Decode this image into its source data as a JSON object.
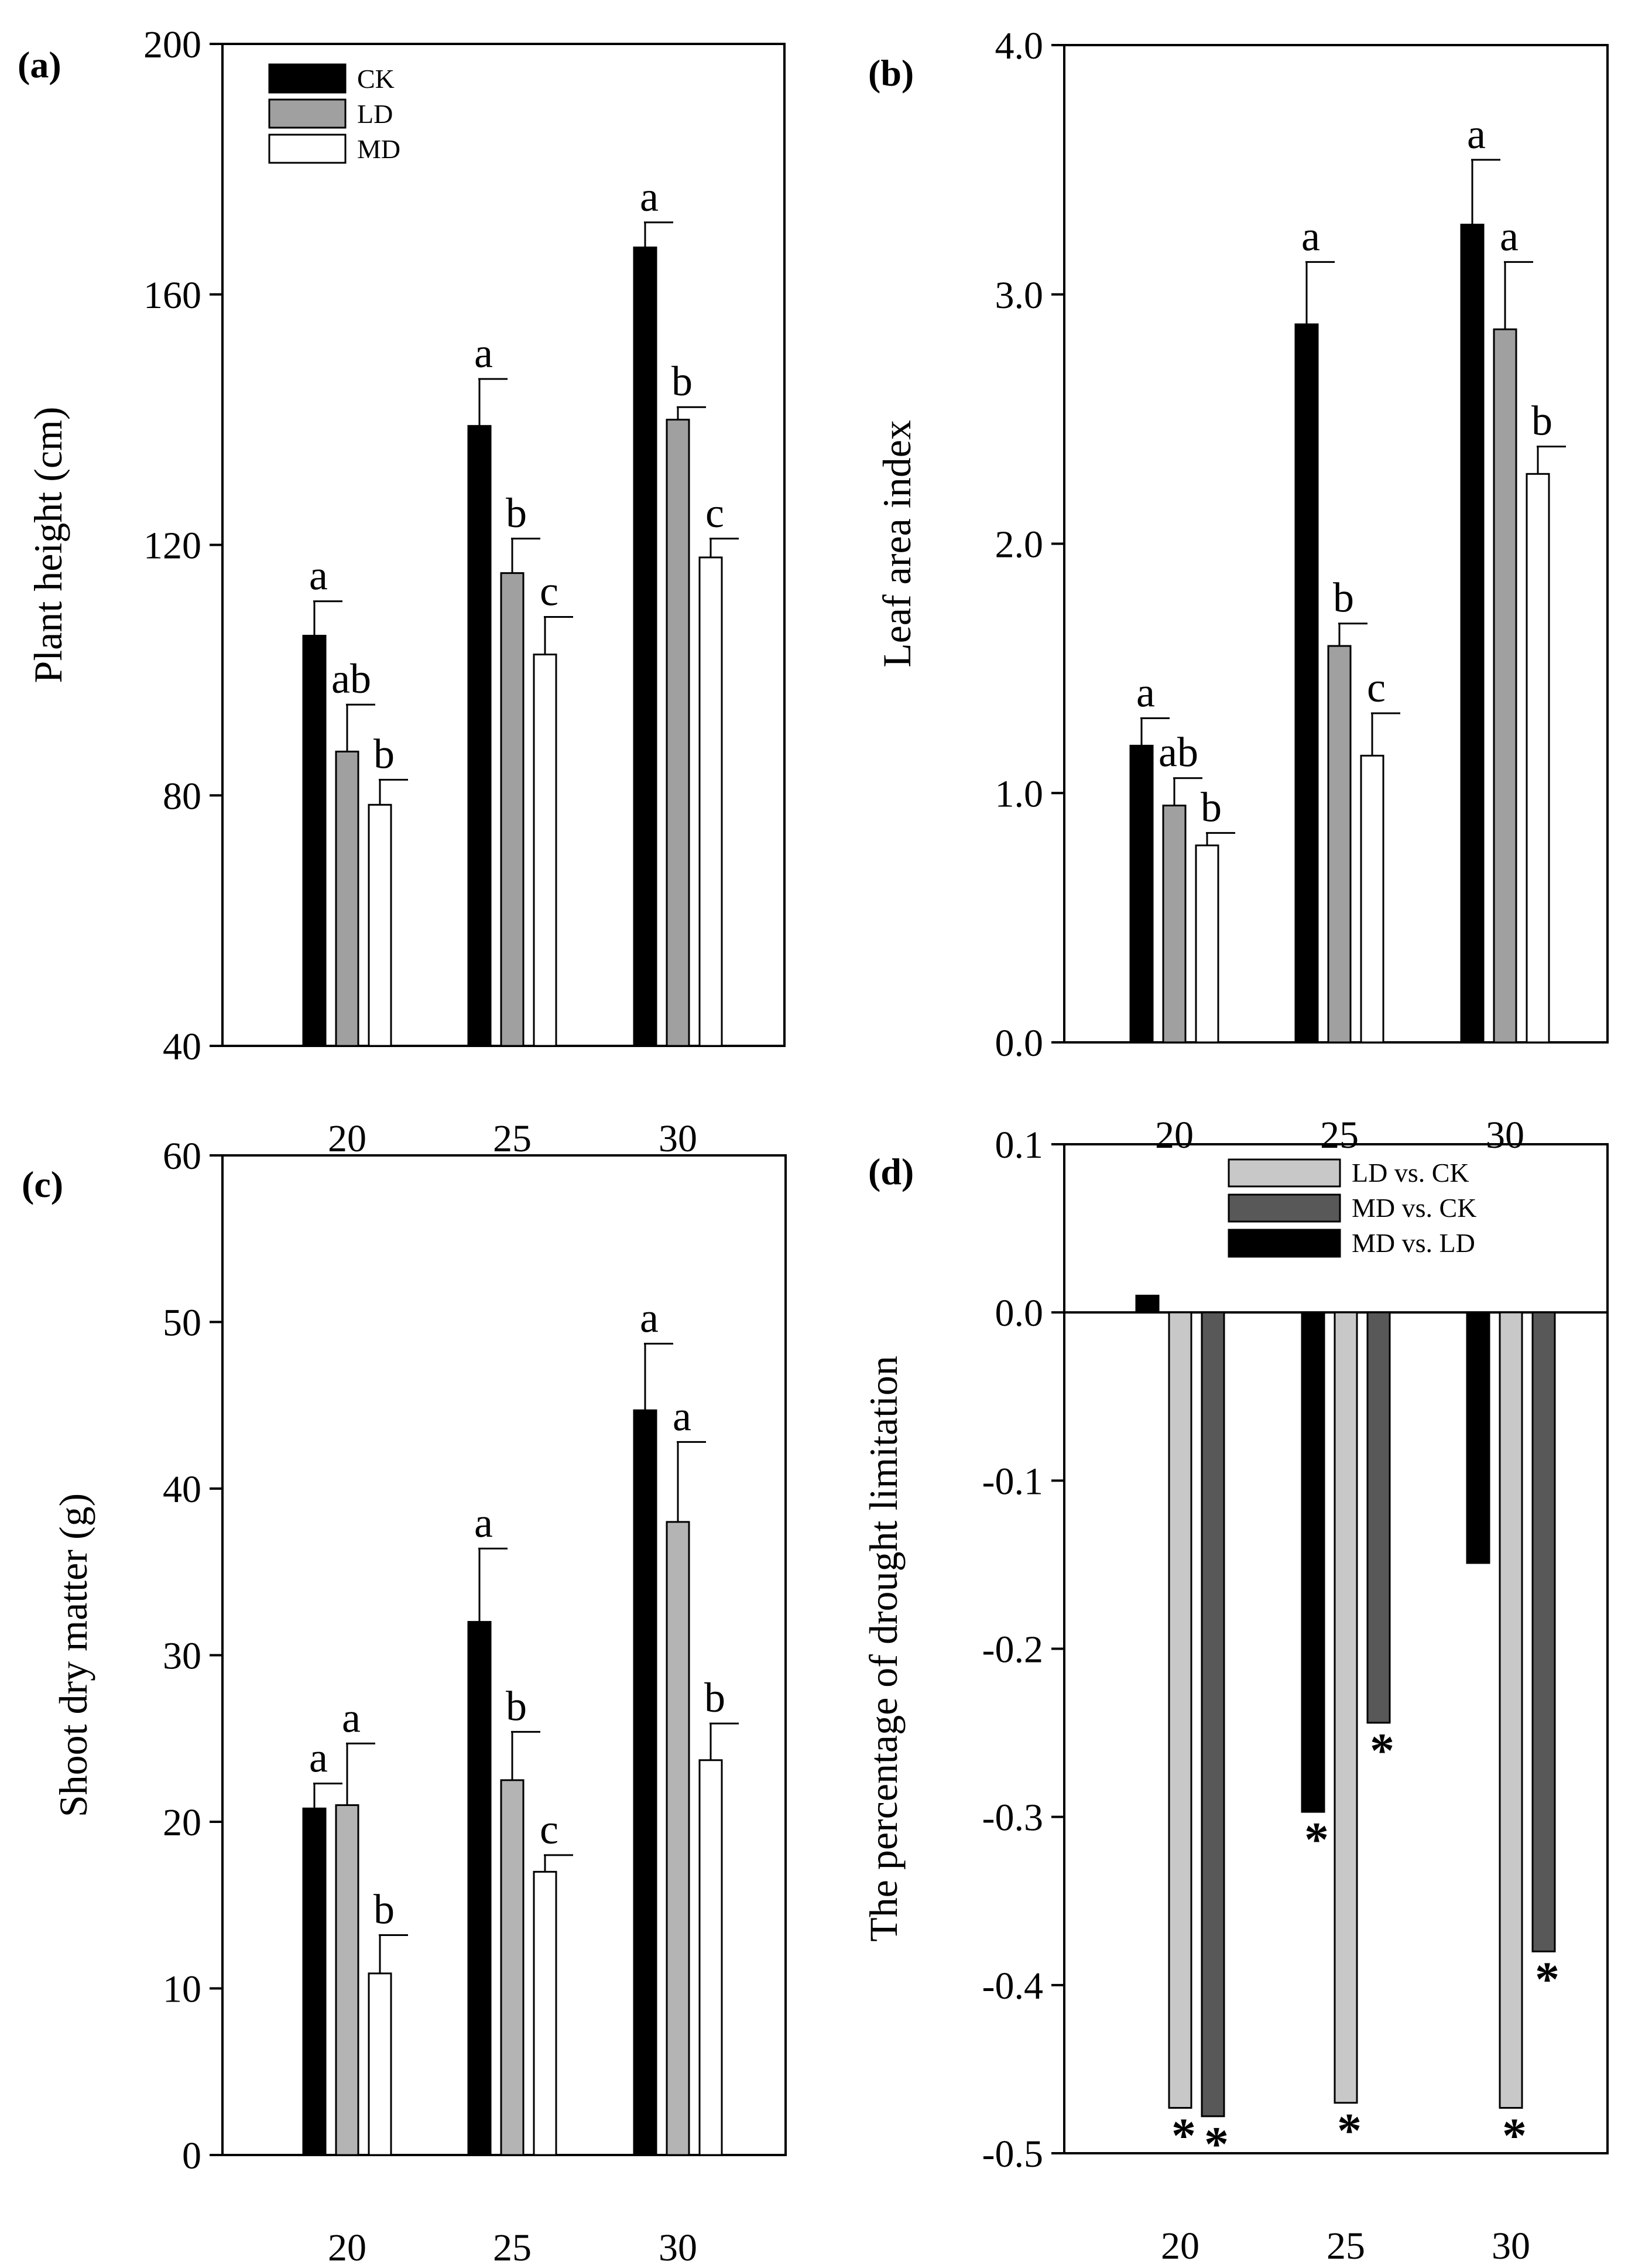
{
  "chart_data": [
    {
      "id": "a",
      "type": "bar",
      "panel_label": "(a)",
      "ylabel": "Plant height (cm)",
      "xlabel": "",
      "categories": [
        "20",
        "25",
        "30"
      ],
      "ylim": [
        40,
        200
      ],
      "yticks": [
        "40",
        "80",
        "120",
        "160",
        "200"
      ],
      "series": [
        {
          "name": "CK",
          "color": "#000000",
          "values": [
            105.5,
            139,
            167.5
          ],
          "errors": [
            5.5,
            7.5,
            4
          ],
          "letters": [
            "a",
            "a",
            "a"
          ]
        },
        {
          "name": "LD",
          "color": "#a0a0a0",
          "values": [
            87,
            115.5,
            140
          ],
          "errors": [
            7.5,
            5.5,
            2
          ],
          "letters": [
            "ab",
            "b",
            "b"
          ]
        },
        {
          "name": "MD",
          "color": "#ffffff",
          "values": [
            78.5,
            102.5,
            118
          ],
          "errors": [
            4,
            6,
            3
          ],
          "letters": [
            "b",
            "c",
            "c"
          ]
        }
      ],
      "legend": {
        "placement": "top-left",
        "entries": [
          "CK",
          "LD",
          "MD"
        ]
      }
    },
    {
      "id": "b",
      "type": "bar",
      "panel_label": "(b)",
      "ylabel": "Leaf area index",
      "xlabel": "",
      "categories": [
        "20",
        "25",
        "30"
      ],
      "ylim": [
        0,
        4
      ],
      "yticks": [
        "0.0",
        "1.0",
        "2.0",
        "3.0",
        "4.0"
      ],
      "series": [
        {
          "name": "CK",
          "color": "#000000",
          "values": [
            1.19,
            2.88,
            3.28
          ],
          "errors": [
            0.11,
            0.25,
            0.26
          ],
          "letters": [
            "a",
            "a",
            "a"
          ]
        },
        {
          "name": "LD",
          "color": "#a0a0a0",
          "values": [
            0.95,
            1.59,
            2.86
          ],
          "errors": [
            0.11,
            0.09,
            0.27
          ],
          "letters": [
            "ab",
            "b",
            "a"
          ]
        },
        {
          "name": "MD",
          "color": "#ffffff",
          "values": [
            0.79,
            1.15,
            2.28
          ],
          "errors": [
            0.05,
            0.17,
            0.11
          ],
          "letters": [
            "b",
            "c",
            "b"
          ]
        }
      ]
    },
    {
      "id": "c",
      "type": "bar",
      "panel_label": "(c)",
      "ylabel": "Shoot dry matter (g)",
      "xlabel": "",
      "categories": [
        "20",
        "25",
        "30"
      ],
      "ylim": [
        0,
        60
      ],
      "yticks": [
        "0",
        "10",
        "20",
        "30",
        "40",
        "50",
        "60"
      ],
      "series": [
        {
          "name": "CK",
          "color": "#000000",
          "values": [
            20.8,
            32,
            44.7
          ],
          "errors": [
            1.5,
            4.4,
            4
          ],
          "letters": [
            "a",
            "a",
            "a"
          ]
        },
        {
          "name": "LD",
          "color": "#b4b4b4",
          "values": [
            21,
            22.5,
            38
          ],
          "errors": [
            3.7,
            2.9,
            4.8
          ],
          "letters": [
            "a",
            "b",
            "a"
          ]
        },
        {
          "name": "MD",
          "color": "#ffffff",
          "values": [
            10.9,
            17,
            23.7
          ],
          "errors": [
            2.3,
            1,
            2.2
          ],
          "letters": [
            "b",
            "c",
            "b"
          ]
        }
      ]
    },
    {
      "id": "d",
      "type": "bar",
      "panel_label": "(d)",
      "ylabel": "The percentage of drought limitation",
      "xlabel": "",
      "categories": [
        "20",
        "25",
        "30"
      ],
      "ylim": [
        -0.5,
        0.1
      ],
      "yticks": [
        "-0.5",
        "-0.4",
        "-0.3",
        "-0.2",
        "-0.1",
        "0.0",
        "0.1"
      ],
      "series": [
        {
          "name": "MD vs. LD",
          "color": "#000000",
          "values": [
            0.01,
            -0.297,
            -0.149
          ],
          "significant": [
            false,
            true,
            false
          ]
        },
        {
          "name": "LD vs. CK",
          "color": "#c8c8c8",
          "values": [
            -0.473,
            -0.47,
            -0.473
          ],
          "significant": [
            true,
            true,
            true
          ]
        },
        {
          "name": "MD vs. CK",
          "color": "#585858",
          "values": [
            -0.478,
            -0.244,
            -0.38
          ],
          "significant": [
            true,
            true,
            true
          ]
        }
      ],
      "legend": {
        "placement": "top-right",
        "entries": [
          "LD vs. CK",
          "MD vs. CK",
          "MD vs. LD"
        ]
      },
      "significance_marker": "*"
    }
  ]
}
